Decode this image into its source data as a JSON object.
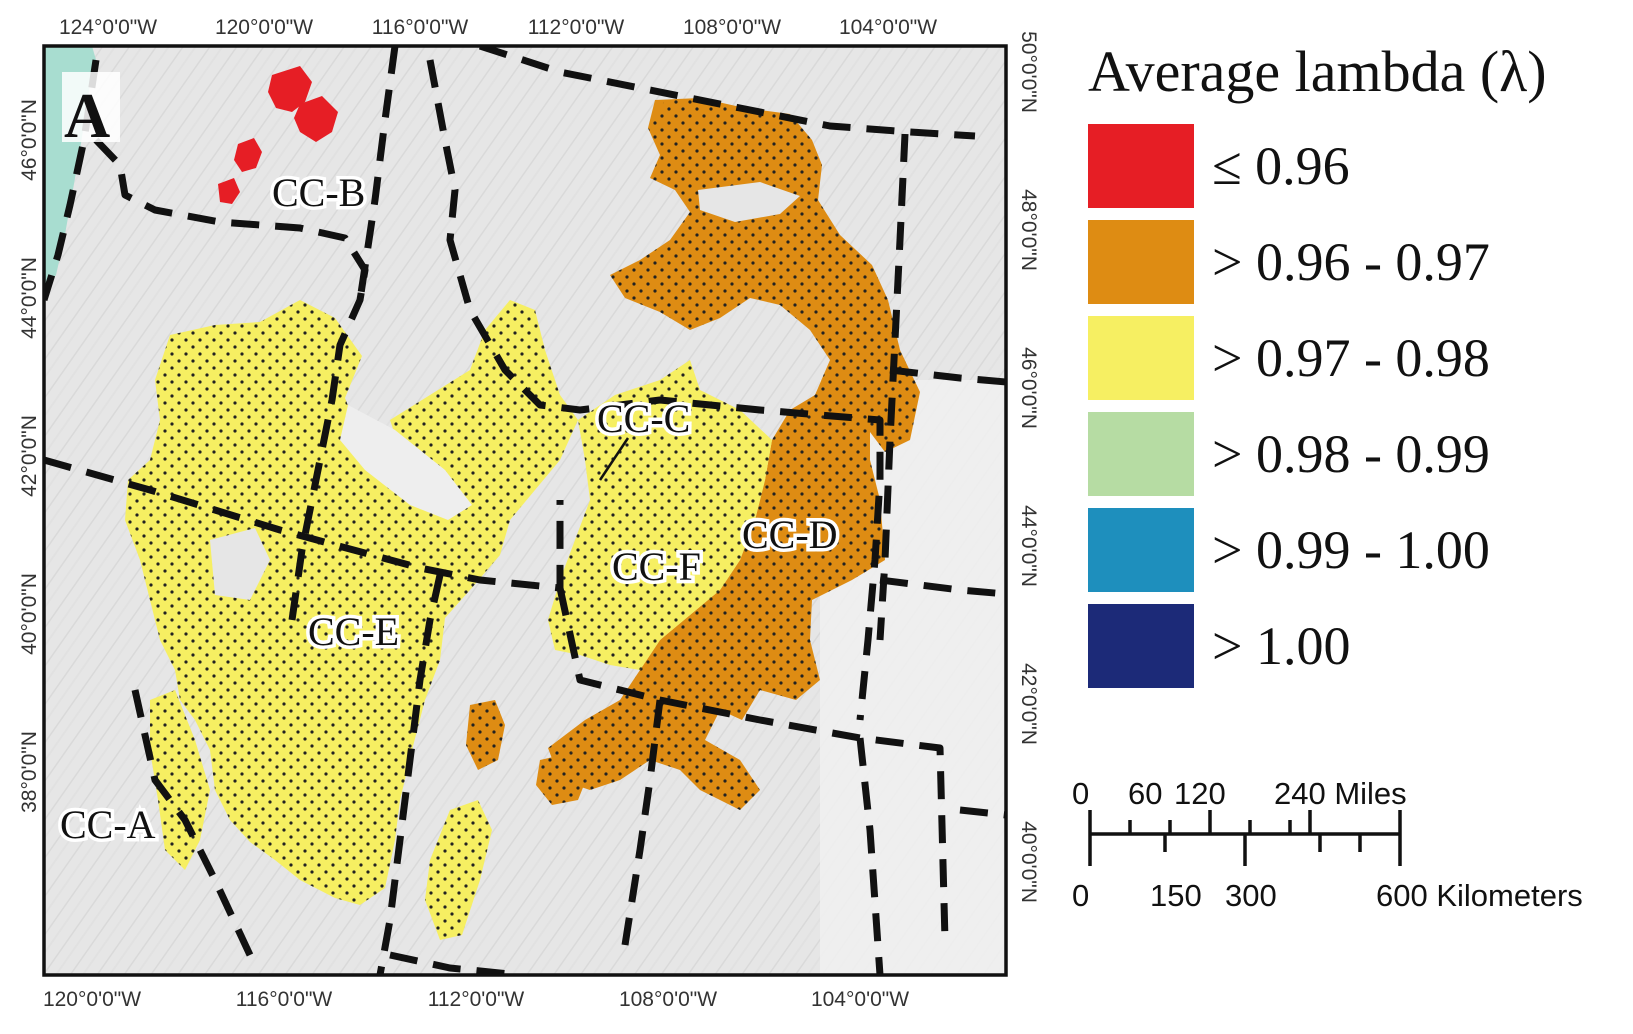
{
  "map": {
    "panel_letter": "A",
    "colors": {
      "ocean": "#a8ddd0",
      "terrain": "#e6e6e6",
      "frame": "#111111",
      "boundary": "#111111"
    },
    "top_ticks": [
      "124°0'0\"W",
      "120°0'0\"W",
      "116°0'0\"W",
      "112°0'0\"W",
      "108°0'0\"W",
      "104°0'0\"W"
    ],
    "bottom_ticks": [
      "120°0'0\"W",
      "116°0'0\"W",
      "112°0'0\"W",
      "108°0'0\"W",
      "104°0'0\"W"
    ],
    "left_ticks": [
      "46°0'0\"N",
      "44°0'0\"N",
      "42°0'0\"N",
      "40°0'0\"N",
      "38°0'0\"N"
    ],
    "right_ticks": [
      "50°0'0\"N",
      "48°0'0\"N",
      "46°0'0\"N",
      "44°0'0\"N",
      "42°0'0\"N",
      "40°0'0\"N"
    ],
    "zones": [
      {
        "id": "CC-A",
        "label": "CC-A",
        "lambda_class": "> 0.97 - 0.98"
      },
      {
        "id": "CC-B",
        "label": "CC-B",
        "lambda_class": "≤ 0.96"
      },
      {
        "id": "CC-C",
        "label": "CC-C",
        "lambda_class": "> 0.97 - 0.98"
      },
      {
        "id": "CC-D",
        "label": "CC-D",
        "lambda_class": "> 0.96 - 0.97"
      },
      {
        "id": "CC-E",
        "label": "CC-E",
        "lambda_class": "> 0.97 - 0.98"
      },
      {
        "id": "CC-F",
        "label": "CC-F",
        "lambda_class": "> 0.97 - 0.98"
      }
    ]
  },
  "legend": {
    "title": "Average lambda (λ)",
    "classes": [
      {
        "label": "≤ 0.96",
        "color": "#e61e25"
      },
      {
        "label": "> 0.96 - 0.97",
        "color": "#de8c13"
      },
      {
        "label": "> 0.97 - 0.98",
        "color": "#f6ef62"
      },
      {
        "label": "> 0.98 - 0.99",
        "color": "#b6dca3"
      },
      {
        "label": "> 0.99 - 1.00",
        "color": "#1e8fbd"
      },
      {
        "label": "> 1.00",
        "color": "#1c2a78"
      }
    ]
  },
  "scale_bar": {
    "miles_ticks": [
      "0",
      "60",
      "120",
      "240 Miles"
    ],
    "km_ticks": [
      "0",
      "150",
      "300",
      "600 Kilometers"
    ]
  }
}
